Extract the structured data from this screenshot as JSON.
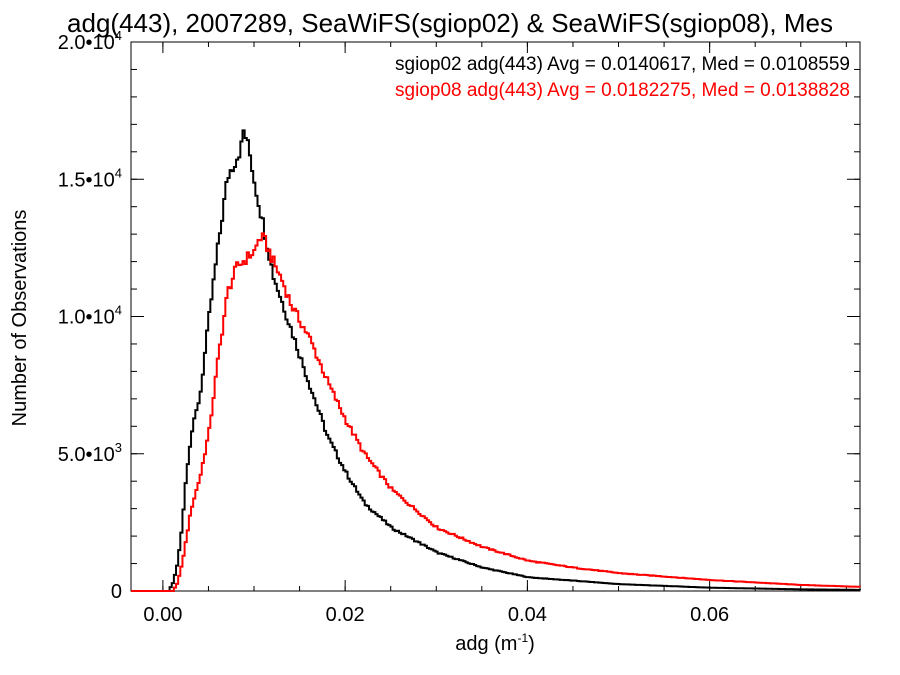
{
  "chart_data": {
    "type": "line",
    "title": "adg(443), 2007289, SeaWiFS(sgiop02) & SeaWiFS(sgiop08), Mes",
    "xlabel_main": "adg (m",
    "xlabel_sup": "-1",
    "xlabel_close": ")",
    "ylabel": "Number of Observations",
    "xlim": [
      -0.0035,
      0.0765
    ],
    "ylim": [
      0,
      20000
    ],
    "x_ticks": [
      {
        "value": 0.0,
        "label": "0.00"
      },
      {
        "value": 0.02,
        "label": "0.02"
      },
      {
        "value": 0.04,
        "label": "0.04"
      },
      {
        "value": 0.06,
        "label": "0.06"
      }
    ],
    "x_minor_step": 0.005,
    "y_ticks": [
      {
        "value": 0,
        "base": "0",
        "exp": ""
      },
      {
        "value": 5000,
        "base": "5.0•10",
        "exp": "3"
      },
      {
        "value": 10000,
        "base": "1.0•10",
        "exp": "4"
      },
      {
        "value": 15000,
        "base": "1.5•10",
        "exp": "4"
      },
      {
        "value": 20000,
        "base": "2.0•10",
        "exp": "4"
      }
    ],
    "y_minor_step": 1000,
    "legend_placement": "top-right",
    "series": [
      {
        "name": "sgiop02 adg(443) Avg = 0.0140617, Med = 0.0108559",
        "color": "#000000",
        "x": [
          -0.0035,
          0.0005,
          0.001,
          0.0015,
          0.002,
          0.0025,
          0.003,
          0.004,
          0.005,
          0.006,
          0.007,
          0.008,
          0.0085,
          0.0088,
          0.009,
          0.0095,
          0.01,
          0.011,
          0.012,
          0.014,
          0.016,
          0.018,
          0.02,
          0.022,
          0.025,
          0.03,
          0.035,
          0.04,
          0.05,
          0.06,
          0.07,
          0.0765
        ],
        "y": [
          0,
          0,
          300,
          1000,
          2400,
          4400,
          5700,
          7200,
          10100,
          12700,
          15100,
          15800,
          16200,
          16900,
          16500,
          15800,
          14800,
          13200,
          11500,
          9500,
          7500,
          5600,
          4300,
          3200,
          2300,
          1400,
          850,
          500,
          250,
          120,
          60,
          40
        ]
      },
      {
        "name": "sgiop08 adg(443) Avg = 0.0182275, Med = 0.0138828",
        "color": "#ff0000",
        "x": [
          -0.0035,
          0.001,
          0.0015,
          0.002,
          0.003,
          0.004,
          0.005,
          0.006,
          0.007,
          0.008,
          0.009,
          0.01,
          0.0105,
          0.011,
          0.012,
          0.013,
          0.014,
          0.016,
          0.018,
          0.02,
          0.022,
          0.025,
          0.03,
          0.035,
          0.04,
          0.045,
          0.05,
          0.06,
          0.07,
          0.0765
        ],
        "y": [
          0,
          0,
          300,
          1000,
          3000,
          4200,
          5900,
          8600,
          10900,
          11800,
          12100,
          12400,
          12900,
          12800,
          12000,
          11300,
          10400,
          9200,
          7600,
          6200,
          5000,
          3700,
          2300,
          1600,
          1100,
          850,
          650,
          400,
          220,
          150
        ]
      }
    ]
  }
}
